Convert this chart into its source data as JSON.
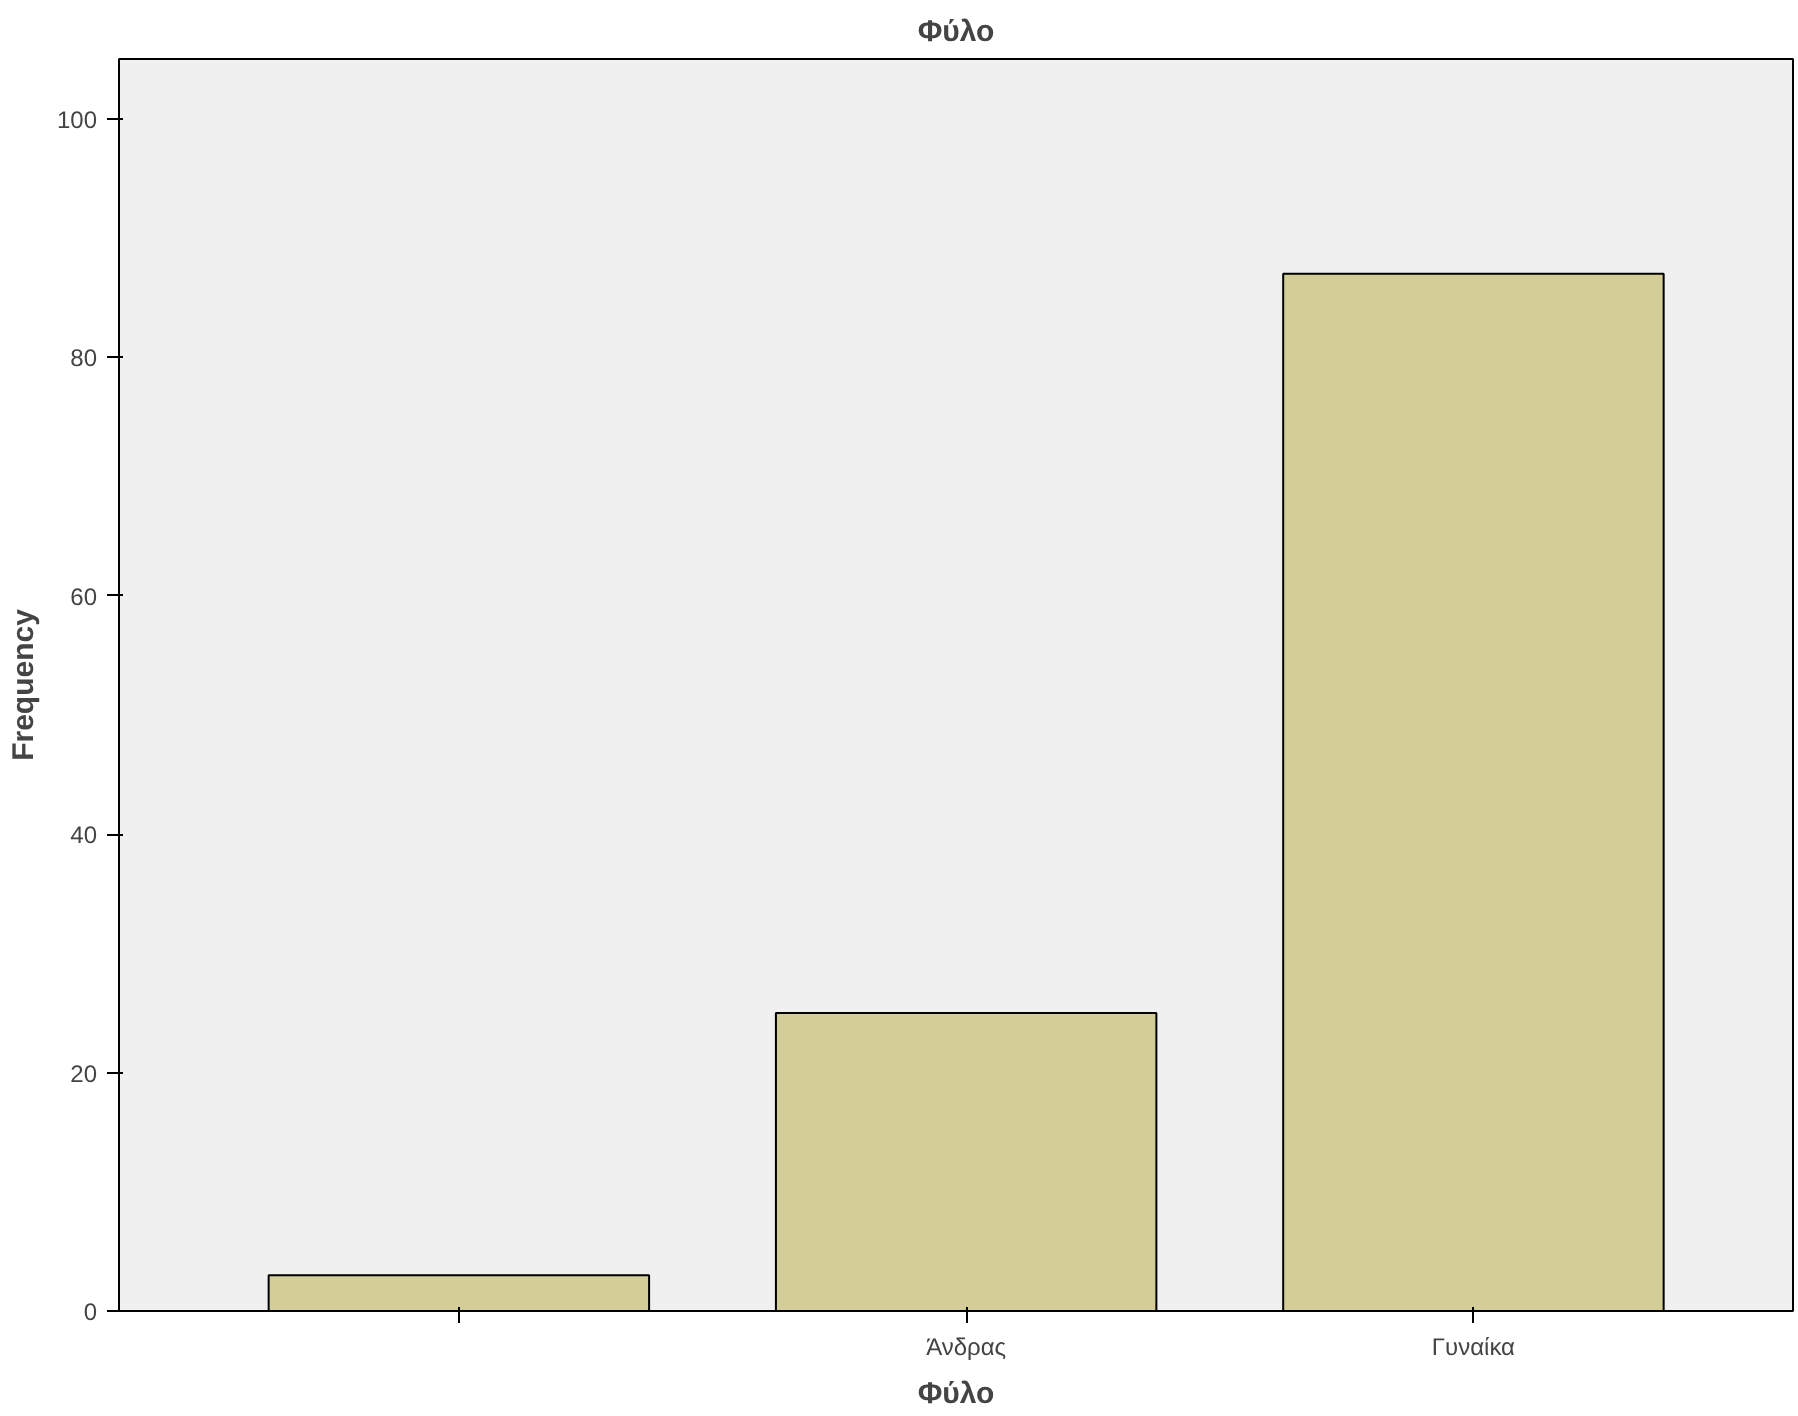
{
  "chart_data": {
    "type": "bar",
    "title": "Φύλο",
    "xlabel": "Φύλο",
    "ylabel": "Frequency",
    "categories": [
      null,
      "Άνδρας",
      "Γυναίκα"
    ],
    "values": [
      3,
      25,
      87
    ],
    "color": "#d3ce97",
    "ylim": [
      0,
      105
    ],
    "yticks": [
      0,
      20,
      40,
      60,
      80,
      100
    ],
    "grid": false
  }
}
